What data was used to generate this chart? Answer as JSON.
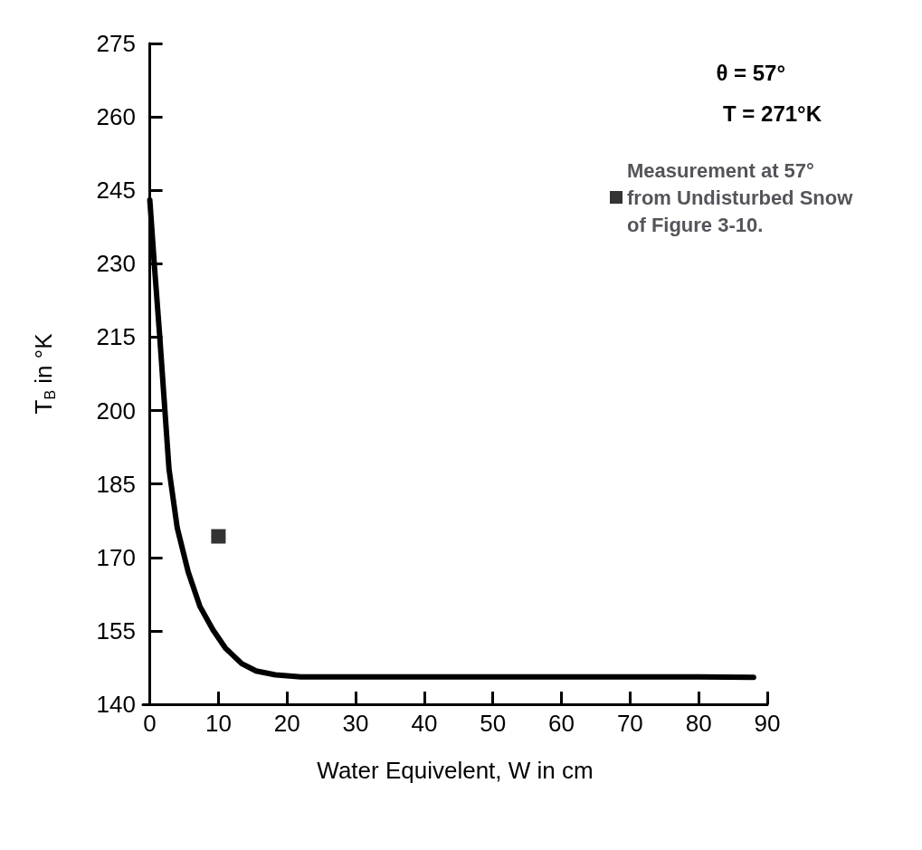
{
  "chart_data": {
    "type": "line",
    "xlabel": "Water Equivelent, W in cm",
    "ylabel": "T$_{B}$ in °K",
    "xlim": [
      -1,
      90
    ],
    "xticks": [
      0,
      10,
      20,
      30,
      40,
      50,
      60,
      70,
      80,
      90
    ],
    "ylim": [
      140,
      275
    ],
    "yticks": [
      140,
      155,
      170,
      185,
      200,
      215,
      230,
      245,
      260,
      275
    ],
    "grid": false,
    "legend": "top right",
    "line_style": "solid",
    "annotations": [
      "θ = 57°",
      "T = 271°K"
    ],
    "series": [
      {
        "color": "#000000",
        "marker": "none",
        "x": [
          0,
          0.7,
          1.4,
          2.1,
          2.8,
          4,
          5.6,
          7.3,
          9.2,
          11,
          13.4,
          15.5,
          18.3,
          22,
          30,
          40,
          60,
          80,
          88
        ],
        "values": [
          243,
          229,
          216,
          202,
          188,
          176,
          167,
          160,
          155.2,
          151.5,
          148.3,
          146.8,
          146,
          145.6,
          145.6,
          145.6,
          145.6,
          145.6,
          145.5
        ]
      },
      {
        "type": "scatter",
        "name": "Measurement at 57° from Undisturbed Snow of Figure 3-10.",
        "color": "#000000",
        "marker": "square",
        "x": [
          10
        ],
        "values": [
          174.3
        ]
      }
    ]
  }
}
